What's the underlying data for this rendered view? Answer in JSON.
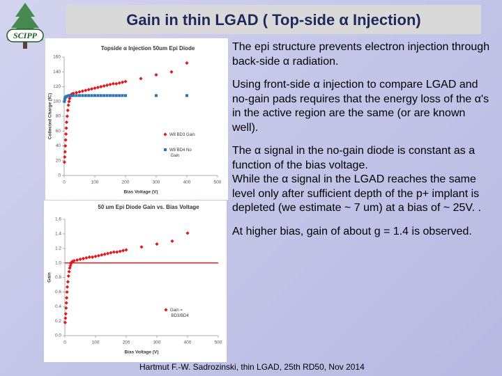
{
  "slide": {
    "title": "Gain in thin LGAD ( Top-side α Injection)",
    "logo": "SCIPP",
    "paragraphs": [
      "The epi structure prevents electron injection through back-side α radiation.",
      "Using front-side α injection to compare LGAD and no-gain pads requires that the energy loss of the α's in the active region are the same (or are known well).",
      "The α signal in the no-gain diode is constant as a function of the bias voltage.",
      "While the α signal in the LGAD reaches the same level only after sufficient depth of the p+ implant is depleted (we estimate ~ 7 um) at a bias of ~ 25V. .",
      "At higher bias, gain of about g = 1.4  is observed."
    ],
    "footer": "Hartmut F.-W. Sadrozinski, thin LGAD, 25th RD50, Nov  2014"
  },
  "chart_data": [
    {
      "type": "scatter",
      "title": "Topside α Injection 50um Epi Diode",
      "x_label": "Bias Voltage (V)",
      "y_label": "Collected Charge (fC)",
      "xlim": [
        0,
        500
      ],
      "xticks": [
        0,
        100,
        200,
        300,
        400,
        500
      ],
      "ylim": [
        0,
        160
      ],
      "yticks": [
        0,
        20,
        40,
        60,
        80,
        100,
        120,
        140,
        160
      ],
      "legend": "lower right",
      "series": [
        {
          "name": "W8 BD3 Gain",
          "color": "#e0191f",
          "marker": "diamond",
          "x": [
            1,
            2,
            3,
            4,
            5,
            6,
            7,
            8,
            10,
            12,
            14,
            16,
            18,
            20,
            22,
            25,
            30,
            40,
            50,
            60,
            70,
            80,
            90,
            100,
            110,
            120,
            130,
            140,
            150,
            160,
            170,
            180,
            190,
            200,
            250,
            300,
            350,
            400
          ],
          "values": [
            18,
            25,
            32,
            40,
            48,
            56,
            64,
            72,
            80,
            88,
            95,
            100,
            104,
            107,
            109,
            110,
            111,
            112,
            113,
            114,
            115,
            116,
            117,
            118,
            119,
            120,
            121,
            122,
            123,
            124,
            124,
            125,
            126,
            127,
            131,
            136,
            140,
            152
          ]
        },
        {
          "name": "W8 BD4 No Gain",
          "color": "#2e75b6",
          "marker": "square",
          "x": [
            1,
            2,
            3,
            5,
            8,
            10,
            15,
            20,
            25,
            30,
            40,
            50,
            60,
            70,
            80,
            90,
            100,
            110,
            120,
            130,
            140,
            150,
            160,
            170,
            180,
            190,
            200,
            300,
            400
          ],
          "values": [
            100,
            103,
            105,
            106,
            107,
            107,
            108,
            108,
            108,
            108,
            108,
            108,
            108,
            108,
            108,
            108,
            108,
            108,
            108,
            108,
            108,
            108,
            108,
            108,
            108,
            108,
            108,
            108,
            108
          ]
        }
      ]
    },
    {
      "type": "scatter",
      "title": "50 um Epi Diode Gain vs. Bias Voltage",
      "x_label": "Bias Voltage (V)",
      "y_label": "Gain",
      "xlim": [
        0,
        500
      ],
      "xticks": [
        0,
        100,
        200,
        300,
        400,
        500
      ],
      "ylim": [
        0,
        1.6
      ],
      "yticks": [
        {
          "value": 0,
          "label": "0.0"
        },
        0.2,
        0.4,
        0.6,
        0.8,
        {
          "value": 1,
          "label": "1.0"
        },
        1.2,
        1.4,
        1.6
      ],
      "reference_line": 1,
      "reference_color": "#e0191f",
      "legend": "lower right",
      "series": [
        {
          "name": "Gain = BD3/BD4",
          "color": "#e0191f",
          "marker": "diamond",
          "x": [
            1,
            2,
            3,
            4,
            5,
            6,
            7,
            8,
            10,
            12,
            14,
            16,
            18,
            20,
            22,
            25,
            30,
            40,
            50,
            60,
            70,
            80,
            90,
            100,
            110,
            120,
            130,
            140,
            150,
            160,
            170,
            180,
            190,
            200,
            250,
            300,
            350,
            400
          ],
          "values": [
            0.18,
            0.24,
            0.3,
            0.38,
            0.45,
            0.52,
            0.6,
            0.67,
            0.74,
            0.82,
            0.88,
            0.93,
            0.96,
            0.99,
            1.01,
            1.02,
            1.03,
            1.04,
            1.05,
            1.06,
            1.07,
            1.08,
            1.08,
            1.09,
            1.1,
            1.11,
            1.12,
            1.13,
            1.14,
            1.15,
            1.15,
            1.16,
            1.17,
            1.18,
            1.22,
            1.26,
            1.3,
            1.41
          ]
        }
      ]
    }
  ]
}
